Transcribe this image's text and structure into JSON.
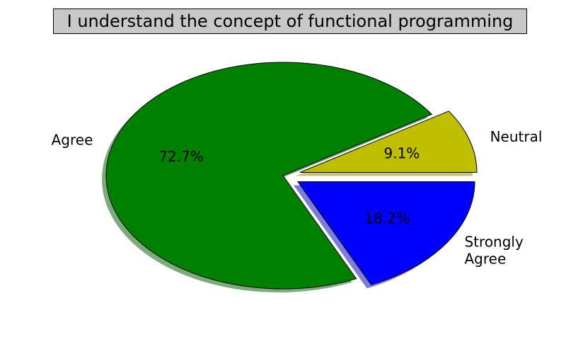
{
  "chart_data": {
    "type": "pie",
    "title": "I understand the concept of functional programming",
    "slices": [
      {
        "label": "Neutral",
        "value": 9.1,
        "pct_label": "9.1%",
        "color": "#bfbf00",
        "exploded": true
      },
      {
        "label": "Agree",
        "value": 72.7,
        "pct_label": "72.7%",
        "color": "#008000",
        "exploded": false
      },
      {
        "label": "Strongly\nAgree",
        "value": 18.2,
        "pct_label": "18.2%",
        "color": "#0000ff",
        "exploded": true
      }
    ],
    "shadow": true,
    "start_angle_deg": 0,
    "direction": "counterclockwise"
  }
}
